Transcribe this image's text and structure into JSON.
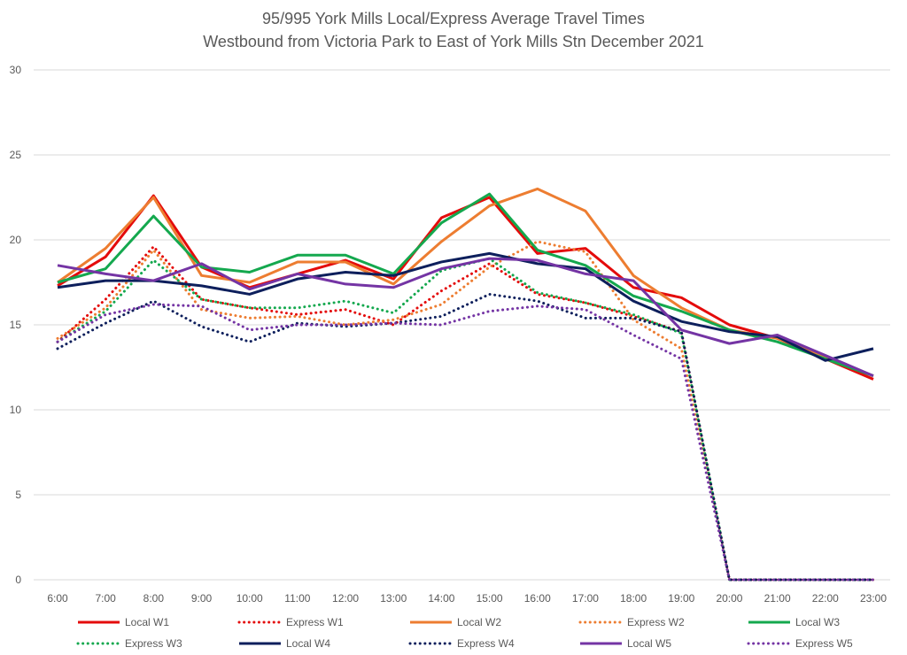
{
  "chart_data": {
    "type": "line",
    "title": [
      "95/995 York Mills Local/Express Average Travel Times",
      "Westbound from Victoria Park to East of York Mills Stn December 2021"
    ],
    "xlabel": "",
    "ylabel": "",
    "ylim": [
      0,
      30
    ],
    "yticks": [
      "0",
      "5",
      "10",
      "15",
      "20",
      "25",
      "30"
    ],
    "grid": true,
    "legend_position": "bottom",
    "categories": [
      "6:00",
      "7:00",
      "8:00",
      "9:00",
      "10:00",
      "11:00",
      "12:00",
      "13:00",
      "14:00",
      "15:00",
      "16:00",
      "17:00",
      "18:00",
      "19:00",
      "20:00",
      "21:00",
      "22:00",
      "23:00"
    ],
    "series": [
      {
        "name": "Local W1",
        "color": "#e40b0b",
        "style": "solid",
        "values": [
          17.3,
          19.0,
          22.6,
          18.4,
          17.2,
          18.0,
          18.8,
          17.7,
          21.3,
          22.5,
          19.2,
          19.5,
          17.2,
          16.6,
          15.0,
          14.2,
          13.0,
          11.8
        ]
      },
      {
        "name": "Express W1",
        "color": "#e40b0b",
        "style": "dotted",
        "values": [
          14.0,
          16.5,
          19.6,
          16.5,
          16.0,
          15.6,
          15.9,
          15.0,
          17.0,
          18.6,
          16.8,
          16.3,
          15.5,
          14.6,
          0,
          0,
          0,
          0
        ]
      },
      {
        "name": "Local W2",
        "color": "#ed7d31",
        "style": "solid",
        "values": [
          17.5,
          19.5,
          22.5,
          17.9,
          17.5,
          18.7,
          18.7,
          17.4,
          19.9,
          22.0,
          23.0,
          21.7,
          17.9,
          16.0,
          14.7,
          14.2,
          13.1,
          12.0
        ]
      },
      {
        "name": "Express W2",
        "color": "#ed7d31",
        "style": "dotted",
        "values": [
          14.2,
          16.0,
          19.4,
          15.9,
          15.4,
          15.5,
          15.0,
          15.3,
          16.2,
          18.4,
          19.9,
          19.3,
          15.3,
          13.6,
          0,
          0,
          0,
          0
        ]
      },
      {
        "name": "Local W3",
        "color": "#14a84e",
        "style": "solid",
        "values": [
          17.5,
          18.3,
          21.4,
          18.4,
          18.1,
          19.1,
          19.1,
          18.0,
          21.0,
          22.7,
          19.4,
          18.5,
          16.7,
          15.8,
          14.7,
          14.0,
          13.0,
          12.0
        ]
      },
      {
        "name": "Express W3",
        "color": "#14a84e",
        "style": "dotted",
        "values": [
          14.0,
          15.8,
          18.8,
          16.5,
          16.0,
          16.0,
          16.4,
          15.7,
          18.2,
          18.9,
          16.9,
          16.3,
          15.6,
          14.5,
          0,
          0,
          0,
          0
        ]
      },
      {
        "name": "Local W4",
        "color": "#0d1f5c",
        "style": "solid",
        "values": [
          17.2,
          17.6,
          17.6,
          17.3,
          16.8,
          17.7,
          18.1,
          17.9,
          18.7,
          19.2,
          18.6,
          18.3,
          16.4,
          15.2,
          14.6,
          14.3,
          12.9,
          13.6
        ]
      },
      {
        "name": "Express W4",
        "color": "#0d1f5c",
        "style": "dotted",
        "values": [
          13.6,
          15.1,
          16.4,
          14.9,
          14.0,
          15.1,
          14.9,
          15.1,
          15.5,
          16.8,
          16.4,
          15.4,
          15.4,
          14.6,
          0,
          0,
          0,
          0
        ]
      },
      {
        "name": "Local W5",
        "color": "#7434a4",
        "style": "solid",
        "values": [
          18.5,
          18.0,
          17.6,
          18.6,
          17.1,
          18.0,
          17.4,
          17.2,
          18.3,
          18.9,
          18.8,
          18.0,
          17.6,
          14.7,
          13.9,
          14.4,
          13.2,
          12.0
        ]
      },
      {
        "name": "Express W5",
        "color": "#7434a4",
        "style": "dotted",
        "values": [
          14.0,
          15.6,
          16.2,
          16.1,
          14.7,
          15.0,
          15.0,
          15.1,
          15.0,
          15.8,
          16.1,
          15.9,
          14.4,
          13.0,
          0,
          0,
          0,
          0
        ]
      }
    ]
  }
}
